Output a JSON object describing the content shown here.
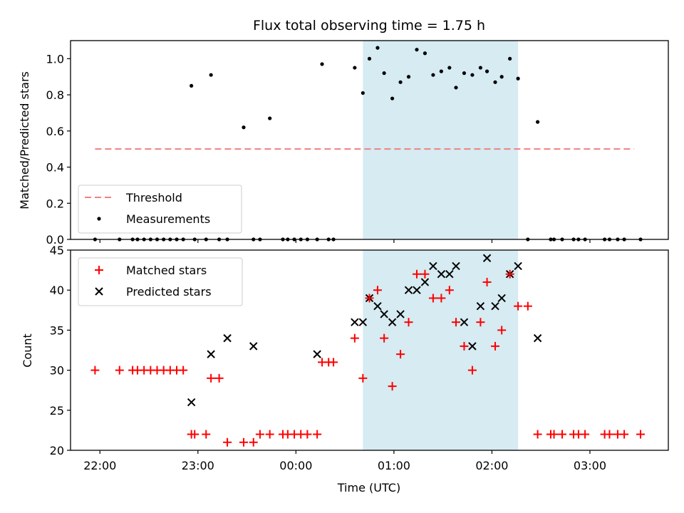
{
  "chart_data": [
    {
      "type": "scatter",
      "title": "Flux total observing time = 1.75 h",
      "xlabel": "",
      "ylabel": "Matched/Predicted stars",
      "ylim": [
        0,
        1.1
      ],
      "yticks": [
        0.0,
        0.2,
        0.4,
        0.6,
        0.8,
        1.0
      ],
      "ytick_labels": [
        "0.0",
        "0.2",
        "0.4",
        "0.6",
        "0.8",
        "1.0"
      ],
      "xlim": [
        "21:42",
        "03:48"
      ],
      "shaded_interval": [
        "00:41",
        "02:16"
      ],
      "threshold": {
        "name": "Threshold",
        "value": 0.5,
        "x_start": "21:57",
        "x_end": "03:27",
        "color": "#f08080"
      },
      "legend_position": "lower left",
      "series": [
        {
          "name": "Measurements",
          "color": "#000000",
          "x": [
            "21:57",
            "22:12",
            "22:20",
            "22:23",
            "22:27",
            "22:31",
            "22:35",
            "22:39",
            "22:43",
            "22:47",
            "22:51",
            "22:56",
            "22:58",
            "23:05",
            "23:08",
            "23:13",
            "23:18",
            "23:28",
            "23:34",
            "23:38",
            "23:44",
            "23:52",
            "23:55",
            "23:59",
            "00:03",
            "00:07",
            "00:13",
            "00:16",
            "00:20",
            "00:23",
            "00:36",
            "00:41",
            "00:45",
            "00:50",
            "00:54",
            "00:59",
            "01:04",
            "01:09",
            "01:14",
            "01:19",
            "01:24",
            "01:29",
            "01:34",
            "01:38",
            "01:43",
            "01:48",
            "01:53",
            "01:57",
            "02:02",
            "02:06",
            "02:11",
            "02:16",
            "02:22",
            "02:28",
            "02:36",
            "02:38",
            "02:43",
            "02:50",
            "02:53",
            "02:57",
            "03:09",
            "03:12",
            "03:17",
            "03:21",
            "03:31"
          ],
          "values": [
            0,
            0,
            0,
            0,
            0,
            0,
            0,
            0,
            0,
            0,
            0,
            0.85,
            0,
            0,
            0.91,
            0,
            0,
            0.62,
            0,
            0,
            0.67,
            0,
            0,
            0,
            0,
            0,
            0,
            0.97,
            0,
            0,
            0.95,
            0.81,
            1.0,
            1.06,
            0.92,
            0.78,
            0.87,
            0.9,
            1.05,
            1.03,
            0.91,
            0.93,
            0.95,
            0.84,
            0.92,
            0.91,
            0.95,
            0.93,
            0.87,
            0.9,
            1.0,
            0.89,
            0,
            0.65,
            0,
            0,
            0,
            0,
            0,
            0,
            0,
            0,
            0,
            0,
            0
          ]
        }
      ]
    },
    {
      "type": "scatter",
      "xlabel": "Time (UTC)",
      "ylabel": "Count",
      "ylim": [
        20,
        45
      ],
      "yticks": [
        20,
        25,
        30,
        35,
        40,
        45
      ],
      "ytick_labels": [
        "20",
        "25",
        "30",
        "35",
        "40",
        "45"
      ],
      "xlim": [
        "21:42",
        "03:48"
      ],
      "xticks": [
        "22:00",
        "23:00",
        "00:00",
        "01:00",
        "02:00",
        "03:00"
      ],
      "xtick_labels": [
        "22:00",
        "23:00",
        "00:00",
        "01:00",
        "02:00",
        "03:00"
      ],
      "shaded_interval": [
        "00:41",
        "02:16"
      ],
      "legend_position": "upper left",
      "series": [
        {
          "name": "Matched stars",
          "marker": "plus",
          "color": "#ff0000",
          "x": [
            "21:57",
            "22:12",
            "22:20",
            "22:23",
            "22:27",
            "22:31",
            "22:35",
            "22:39",
            "22:43",
            "22:47",
            "22:51",
            "22:56",
            "22:58",
            "23:05",
            "23:08",
            "23:13",
            "23:18",
            "23:28",
            "23:34",
            "23:38",
            "23:44",
            "23:52",
            "23:55",
            "23:59",
            "00:03",
            "00:07",
            "00:13",
            "00:16",
            "00:20",
            "00:23",
            "00:36",
            "00:41",
            "00:45",
            "00:50",
            "00:54",
            "00:59",
            "01:04",
            "01:09",
            "01:14",
            "01:19",
            "01:24",
            "01:29",
            "01:34",
            "01:38",
            "01:43",
            "01:48",
            "01:53",
            "01:57",
            "02:02",
            "02:06",
            "02:11",
            "02:16",
            "02:22",
            "02:28",
            "02:36",
            "02:38",
            "02:43",
            "02:50",
            "02:53",
            "02:57",
            "03:09",
            "03:12",
            "03:17",
            "03:21",
            "03:31"
          ],
          "values": [
            30,
            30,
            30,
            30,
            30,
            30,
            30,
            30,
            30,
            30,
            30,
            22,
            22,
            22,
            29,
            29,
            21,
            21,
            21,
            22,
            22,
            22,
            22,
            22,
            22,
            22,
            22,
            31,
            31,
            31,
            34,
            29,
            39,
            40,
            34,
            28,
            32,
            36,
            42,
            42,
            39,
            39,
            40,
            36,
            33,
            30,
            36,
            41,
            33,
            35,
            42,
            38,
            38,
            22,
            22,
            22,
            22,
            22,
            22,
            22,
            22,
            22,
            22,
            22,
            22
          ]
        },
        {
          "name": "Predicted stars",
          "marker": "x",
          "color": "#000000",
          "x": [
            "22:56",
            "23:08",
            "23:18",
            "23:34",
            "00:13",
            "00:36",
            "00:41",
            "00:45",
            "00:50",
            "00:54",
            "00:59",
            "01:04",
            "01:09",
            "01:14",
            "01:19",
            "01:24",
            "01:29",
            "01:34",
            "01:38",
            "01:43",
            "01:48",
            "01:53",
            "01:57",
            "02:02",
            "02:06",
            "02:11",
            "02:16",
            "02:28"
          ],
          "values": [
            26,
            32,
            34,
            33,
            32,
            36,
            36,
            39,
            38,
            37,
            36,
            37,
            40,
            40,
            41,
            43,
            42,
            42,
            43,
            36,
            33,
            38,
            44,
            38,
            39,
            42,
            43,
            34
          ]
        }
      ]
    }
  ]
}
